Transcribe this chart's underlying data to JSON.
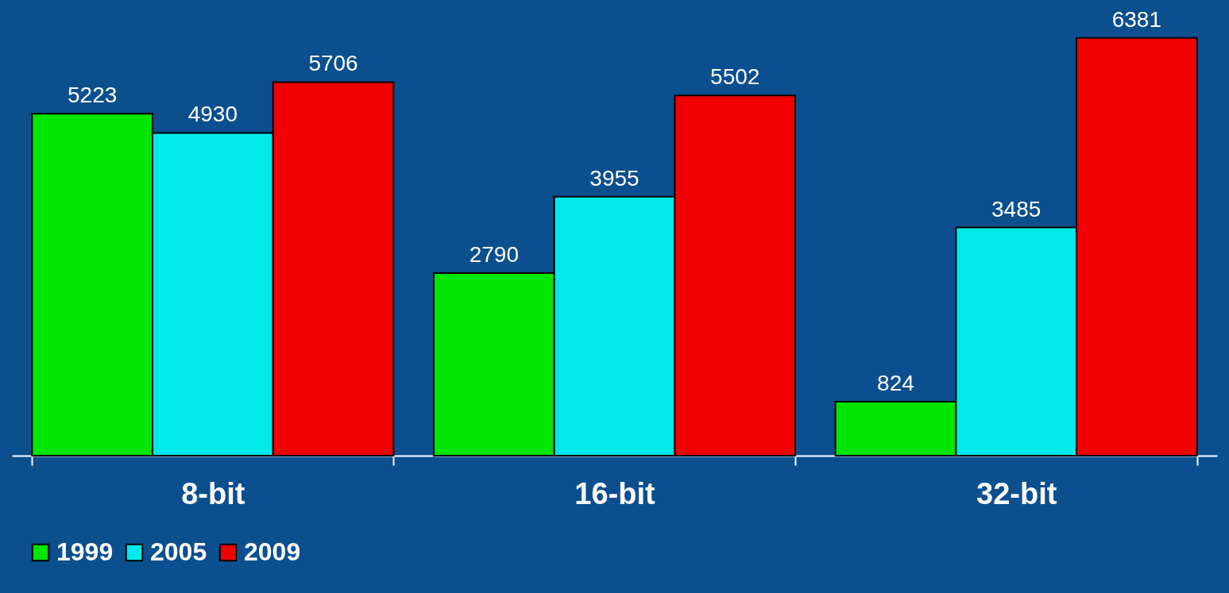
{
  "chart_data": {
    "type": "bar",
    "categories": [
      "8-bit",
      "16-bit",
      "32-bit"
    ],
    "series": [
      {
        "name": "1999",
        "color": "#00e600",
        "values": [
          5223,
          2790,
          824
        ]
      },
      {
        "name": "2005",
        "color": "#00eaea",
        "values": [
          4930,
          3955,
          3485
        ]
      },
      {
        "name": "2009",
        "color": "#f00000",
        "values": [
          5706,
          5502,
          6381
        ]
      }
    ],
    "data_labels": true,
    "legend": "bottom",
    "grid": false
  }
}
